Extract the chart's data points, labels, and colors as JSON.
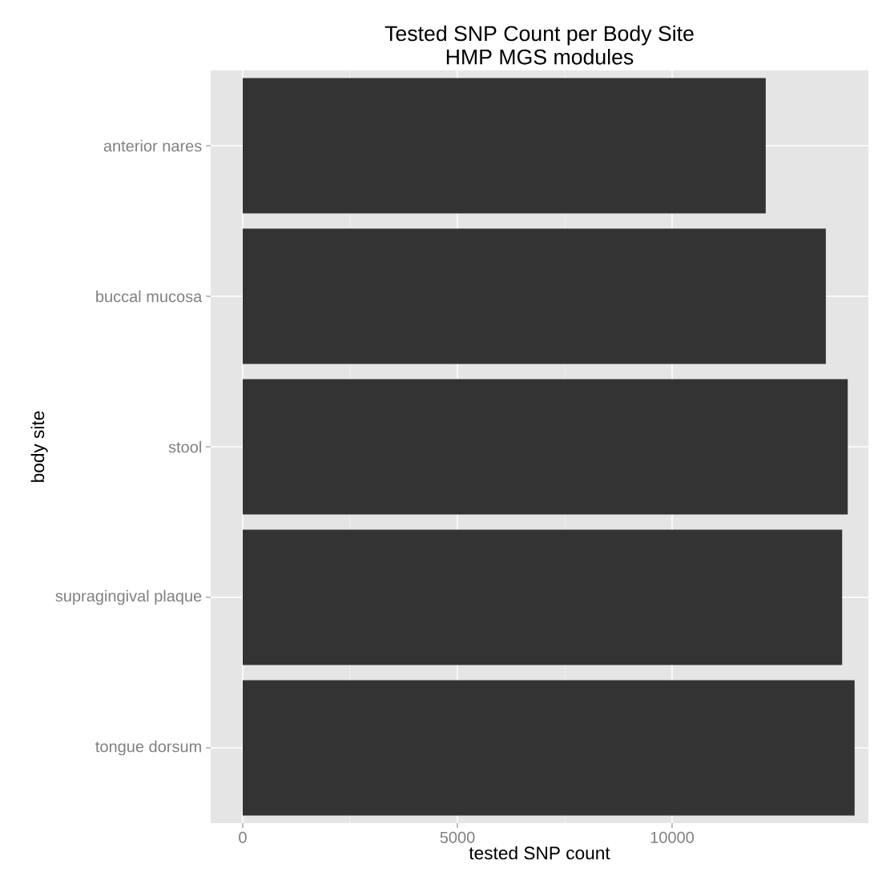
{
  "chart_data": {
    "type": "bar",
    "orientation": "horizontal",
    "title": "Tested SNP Count per Body Site",
    "subtitle": "HMP MGS modules",
    "xlabel": "tested SNP count",
    "ylabel": "body site",
    "categories": [
      "anterior nares",
      "buccal mucosa",
      "stool",
      "supragingival plaque",
      "tongue dorsum"
    ],
    "values": [
      12180,
      13580,
      14090,
      13960,
      14250
    ],
    "color": "#333333",
    "xlim": [
      -746,
      14571
    ],
    "xticks": [
      0,
      5000,
      10000
    ],
    "grid": true
  }
}
